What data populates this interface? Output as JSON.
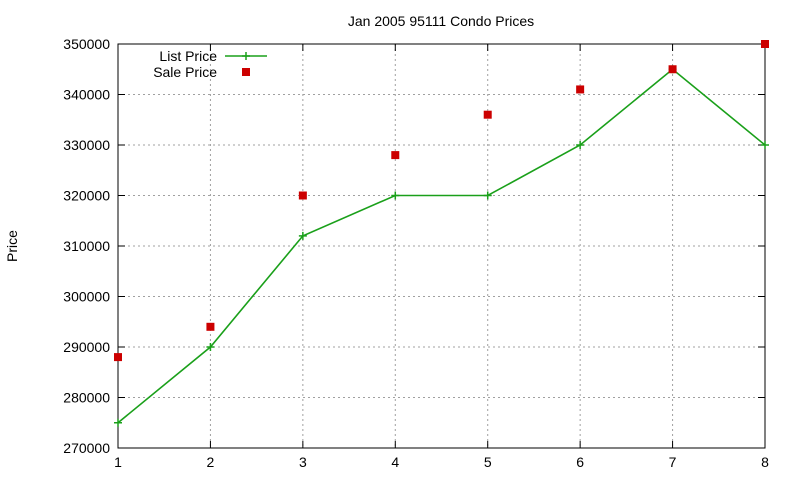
{
  "chart_data": {
    "type": "line",
    "title": "Jan 2005 95111 Condo Prices",
    "xlabel": "",
    "ylabel": "Price",
    "x": [
      1,
      2,
      3,
      4,
      5,
      6,
      7,
      8
    ],
    "xlim": [
      1,
      8
    ],
    "ylim": [
      270000,
      350000
    ],
    "xticks": [
      "1",
      "2",
      "3",
      "4",
      "5",
      "6",
      "7",
      "8"
    ],
    "yticks": [
      "270000",
      "280000",
      "290000",
      "300000",
      "310000",
      "320000",
      "330000",
      "340000",
      "350000"
    ],
    "grid": true,
    "legend_position": "top-left",
    "series": [
      {
        "name": "List Price",
        "style": "linespoints",
        "marker": "plus",
        "color": "#1aa01a",
        "values": [
          275000,
          290000,
          312000,
          320000,
          320000,
          330000,
          345000,
          330000
        ]
      },
      {
        "name": "Sale Price",
        "style": "points",
        "marker": "square",
        "color": "#cc0000",
        "values": [
          288000,
          294000,
          320000,
          328000,
          336000,
          341000,
          345000,
          350000
        ]
      }
    ]
  }
}
